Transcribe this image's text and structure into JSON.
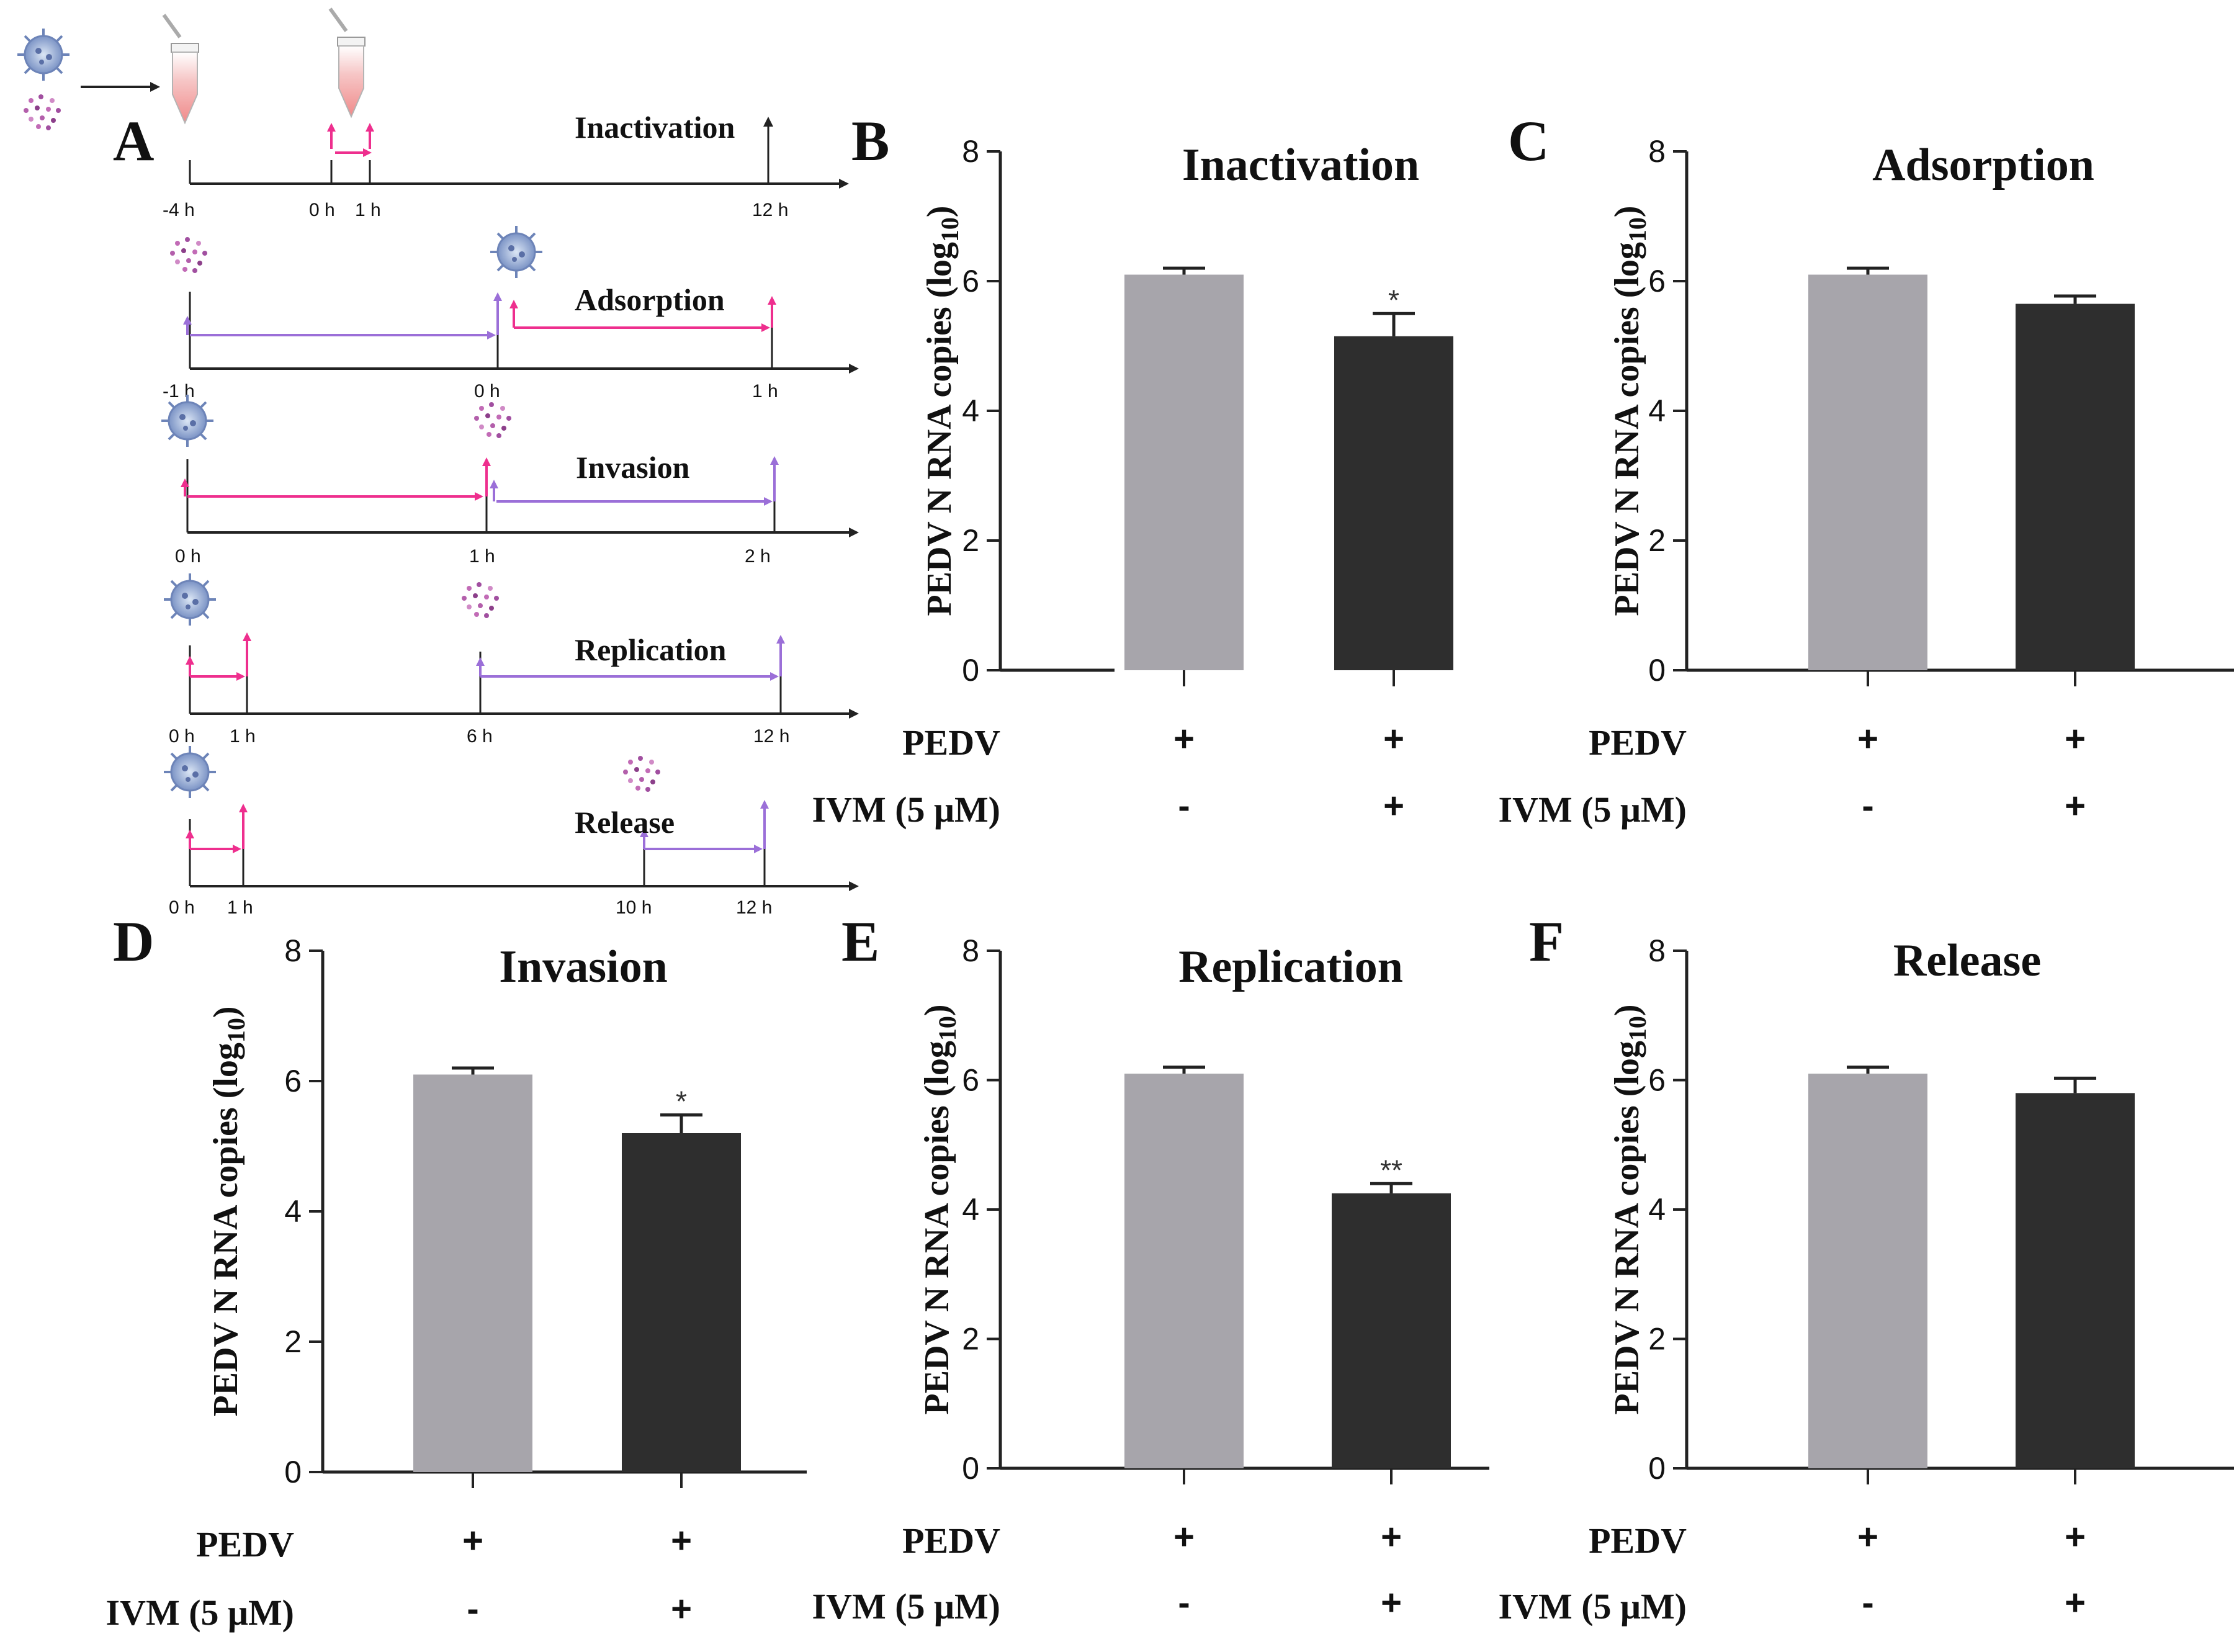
{
  "colors": {
    "control_bar": "#a7a5ab",
    "ivm_bar": "#2e2e2e",
    "pink_arrow": "#ee2f8e",
    "purple_arrow": "#9b6fd8",
    "axis": "#222222"
  },
  "panelA": {
    "letter": "A",
    "timelines": [
      {
        "title": "Inactivation",
        "ticks": [
          "-4 h",
          "0 h",
          "1 h",
          "12 h"
        ]
      },
      {
        "title": "Adsorption",
        "ticks": [
          "-1 h",
          "0 h",
          "1 h"
        ]
      },
      {
        "title": "Invasion",
        "ticks": [
          "0 h",
          "1 h",
          "2 h"
        ]
      },
      {
        "title": "Replication",
        "ticks": [
          "0 h",
          "1 h",
          "6 h",
          "12 h"
        ]
      },
      {
        "title": "Release",
        "ticks": [
          "0 h",
          "1 h",
          "10 h",
          "12 h"
        ]
      }
    ],
    "icons": [
      "virus-icon",
      "drug-particles-icon",
      "tube-icon"
    ]
  },
  "conditions": {
    "row1_label": "PEDV",
    "row2_label": "IVM (5 μM)",
    "row1_values": [
      "+",
      "+"
    ],
    "row2_values": [
      "-",
      "+"
    ]
  },
  "chart_data": [
    {
      "panel": "B",
      "type": "bar",
      "title": "Inactivation",
      "ylabel": "PEDV N RNA copies (log10)",
      "ylim": [
        0,
        8
      ],
      "yticks": [
        "0",
        "2",
        "4",
        "6",
        "8"
      ],
      "categories": [
        "PEDV+ / IVM-",
        "PEDV+ / IVM+"
      ],
      "values": [
        6.1,
        5.15
      ],
      "errors": [
        0.1,
        0.35
      ],
      "significance": [
        "",
        "*"
      ]
    },
    {
      "panel": "C",
      "type": "bar",
      "title": "Adsorption",
      "ylabel": "PEDV N RNA copies (log10)",
      "ylim": [
        0,
        8
      ],
      "yticks": [
        "0",
        "2",
        "4",
        "6",
        "8"
      ],
      "categories": [
        "PEDV+ / IVM-",
        "PEDV+ / IVM+"
      ],
      "values": [
        6.1,
        5.65
      ],
      "errors": [
        0.1,
        0.12
      ],
      "significance": [
        "",
        ""
      ]
    },
    {
      "panel": "D",
      "type": "bar",
      "title": "Invasion",
      "ylabel": "PEDV N RNA copies (log10)",
      "ylim": [
        0,
        8
      ],
      "yticks": [
        "0",
        "2",
        "4",
        "6",
        "8"
      ],
      "categories": [
        "PEDV+ / IVM-",
        "PEDV+ / IVM+"
      ],
      "values": [
        6.1,
        5.2
      ],
      "errors": [
        0.1,
        0.28
      ],
      "significance": [
        "",
        "*"
      ]
    },
    {
      "panel": "E",
      "type": "bar",
      "title": "Replication",
      "ylabel": "PEDV N RNA copies (log10)",
      "ylim": [
        0,
        8
      ],
      "yticks": [
        "0",
        "2",
        "4",
        "6",
        "8"
      ],
      "categories": [
        "PEDV+ / IVM-",
        "PEDV+ / IVM+"
      ],
      "values": [
        6.1,
        4.25
      ],
      "errors": [
        0.1,
        0.15
      ],
      "significance": [
        "",
        "**"
      ]
    },
    {
      "panel": "F",
      "type": "bar",
      "title": "Release",
      "ylabel": "PEDV N RNA copies (log10)",
      "ylim": [
        0,
        8
      ],
      "yticks": [
        "0",
        "2",
        "4",
        "6",
        "8"
      ],
      "categories": [
        "PEDV+ / IVM-",
        "PEDV+ / IVM+"
      ],
      "values": [
        6.1,
        5.8
      ],
      "errors": [
        0.1,
        0.23
      ],
      "significance": [
        "",
        ""
      ]
    }
  ]
}
